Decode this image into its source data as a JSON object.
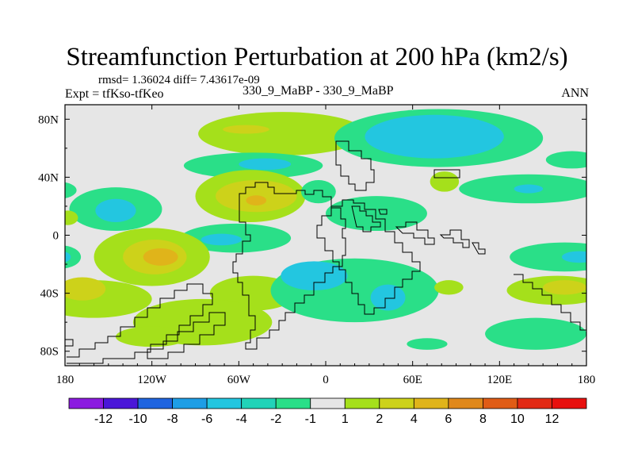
{
  "chart_data": {
    "type": "heatmap",
    "title": "Streamfunction Perturbation at 200 hPa (km2/s)",
    "stats": "rmsd= 1.36024 diff= 7.43617e-09",
    "experiment": "Expt = tfKso-tfKeo",
    "case": "330_9_MaBP - 330_9_MaBP",
    "season": "ANN",
    "x_range": [
      -180,
      180
    ],
    "y_range": [
      -90,
      90
    ],
    "x_ticks": [
      {
        "value": -180,
        "label": "180"
      },
      {
        "value": -120,
        "label": "120W"
      },
      {
        "value": -60,
        "label": "60W"
      },
      {
        "value": 0,
        "label": "0"
      },
      {
        "value": 60,
        "label": "60E"
      },
      {
        "value": 120,
        "label": "120E"
      },
      {
        "value": 180,
        "label": "180"
      }
    ],
    "y_ticks": [
      {
        "value": 80,
        "label": "80N"
      },
      {
        "value": 40,
        "label": "40N"
      },
      {
        "value": 0,
        "label": "0"
      },
      {
        "value": -40,
        "label": "40S"
      },
      {
        "value": -80,
        "label": "80S"
      }
    ],
    "colorbar": {
      "colors": [
        "#8b1ae0",
        "#4a16d8",
        "#1f64e0",
        "#1e9ee6",
        "#23c6e0",
        "#21d3b8",
        "#2adf88",
        "#e6e6e6",
        "#a5e01b",
        "#cdd21a",
        "#e0b41a",
        "#e0881a",
        "#e05c16",
        "#e22a14",
        "#e8100e"
      ],
      "labels": [
        "-12",
        "-10",
        "-8",
        "-6",
        "-4",
        "-2",
        "-1",
        "1",
        "2",
        "4",
        "6",
        "8",
        "10",
        "12"
      ]
    },
    "features": [
      {
        "level": 2,
        "lon": -30,
        "lat": 70,
        "rx": 58,
        "ry": 15
      },
      {
        "level": 4,
        "lon": -55,
        "lat": 73,
        "rx": 16,
        "ry": 3
      },
      {
        "level": -1,
        "lon": -50,
        "lat": 48,
        "rx": 48,
        "ry": 9
      },
      {
        "level": -4,
        "lon": -42,
        "lat": 49,
        "rx": 18,
        "ry": 4
      },
      {
        "level": -1,
        "lon": 78,
        "lat": 67,
        "rx": 72,
        "ry": 20
      },
      {
        "level": -4,
        "lon": 75,
        "lat": 68,
        "rx": 48,
        "ry": 15
      },
      {
        "level": -1,
        "lon": 170,
        "lat": 52,
        "rx": 18,
        "ry": 6
      },
      {
        "level": 2,
        "lon": 82,
        "lat": 37,
        "rx": 10,
        "ry": 7
      },
      {
        "level": 2,
        "lon": -52,
        "lat": 27,
        "rx": 38,
        "ry": 18
      },
      {
        "level": 4,
        "lon": -48,
        "lat": 27,
        "rx": 28,
        "ry": 11
      },
      {
        "level": 6,
        "lon": -48,
        "lat": 24,
        "rx": 7,
        "ry": 3.5
      },
      {
        "level": -1,
        "lon": -5,
        "lat": 30,
        "rx": 12,
        "ry": 8
      },
      {
        "level": -1,
        "lon": -145,
        "lat": 18,
        "rx": 32,
        "ry": 15
      },
      {
        "level": -4,
        "lon": -145,
        "lat": 17,
        "rx": 14,
        "ry": 8
      },
      {
        "level": -1,
        "lon": -185,
        "lat": 31,
        "rx": 13,
        "ry": 6
      },
      {
        "level": -1,
        "lon": 35,
        "lat": 15,
        "rx": 35,
        "ry": 12
      },
      {
        "level": -1,
        "lon": 140,
        "lat": 32,
        "rx": 48,
        "ry": 10
      },
      {
        "level": -4,
        "lon": 140,
        "lat": 32,
        "rx": 10,
        "ry": 3
      },
      {
        "level": 2,
        "lon": -178,
        "lat": 12,
        "rx": 7,
        "ry": 5
      },
      {
        "level": 2,
        "lon": -50,
        "lat": -40,
        "rx": 30,
        "ry": 12
      },
      {
        "level": -1,
        "lon": -62,
        "lat": -2,
        "rx": 38,
        "ry": 10
      },
      {
        "level": -4,
        "lon": -72,
        "lat": -3,
        "rx": 14,
        "ry": 4
      },
      {
        "level": -1,
        "lon": 20,
        "lat": -38,
        "rx": 58,
        "ry": 22
      },
      {
        "level": -4,
        "lon": -8,
        "lat": -28,
        "rx": 23,
        "ry": 10
      },
      {
        "level": -4,
        "lon": 43,
        "lat": -43,
        "rx": 12,
        "ry": 9
      },
      {
        "level": 2,
        "lon": -120,
        "lat": -15,
        "rx": 40,
        "ry": 20
      },
      {
        "level": 4,
        "lon": -118,
        "lat": -15,
        "rx": 22,
        "ry": 12
      },
      {
        "level": 6,
        "lon": -114,
        "lat": -15,
        "rx": 12,
        "ry": 6
      },
      {
        "level": -1,
        "lon": -183,
        "lat": -15,
        "rx": 14,
        "ry": 8
      },
      {
        "level": -4,
        "lon": -183,
        "lat": -15,
        "rx": 7,
        "ry": 4
      },
      {
        "level": 2,
        "lon": -160,
        "lat": -44,
        "rx": 40,
        "ry": 13
      },
      {
        "level": 4,
        "lon": -168,
        "lat": -37,
        "rx": 16,
        "ry": 8
      },
      {
        "level": 2,
        "lon": -85,
        "lat": -60,
        "rx": 48,
        "ry": 16
      },
      {
        "level": 2,
        "lon": -120,
        "lat": -70,
        "rx": 25,
        "ry": 7
      },
      {
        "level": 2,
        "lon": 85,
        "lat": -36,
        "rx": 10,
        "ry": 5
      },
      {
        "level": -1,
        "lon": 165,
        "lat": -15,
        "rx": 38,
        "ry": 10
      },
      {
        "level": -4,
        "lon": 175,
        "lat": -15,
        "rx": 12,
        "ry": 4
      },
      {
        "level": 2,
        "lon": 160,
        "lat": -38,
        "rx": 35,
        "ry": 10
      },
      {
        "level": 4,
        "lon": 165,
        "lat": -36,
        "rx": 15,
        "ry": 5
      },
      {
        "level": -1,
        "lon": 145,
        "lat": -68,
        "rx": 35,
        "ry": 11
      },
      {
        "level": -1,
        "lon": 70,
        "lat": -75,
        "rx": 14,
        "ry": 4
      }
    ]
  }
}
